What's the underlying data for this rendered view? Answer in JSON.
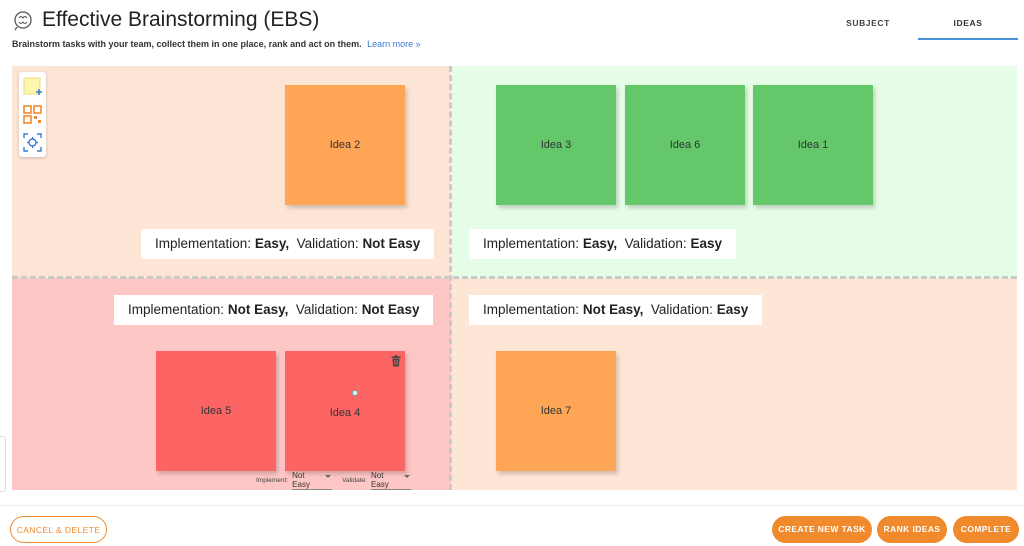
{
  "header": {
    "title": "Effective Brainstorming (EBS)",
    "subtitle": "Brainstorm tasks with your team, collect them in one place, rank and act on them.",
    "learn_more": "Learn more »",
    "logo_icon": "brain-icon"
  },
  "tabs": [
    {
      "label": "SUBJECT",
      "active": false
    },
    {
      "label": "IDEAS",
      "active": true
    }
  ],
  "quadrants": {
    "top_left": {
      "impl_label": "Implementation:",
      "impl_value": "Easy,",
      "valid_label": "Validation:",
      "valid_value": "Not Easy",
      "color": "#fde5d6"
    },
    "top_right": {
      "impl_label": "Implementation:",
      "impl_value": "Easy,",
      "valid_label": "Validation:",
      "valid_value": "Easy",
      "color": "#e5fde6"
    },
    "bottom_left": {
      "impl_label": "Implementation:",
      "impl_value": "Not Easy,",
      "valid_label": "Validation:",
      "valid_value": "Not Easy",
      "color": "#ffc6c6"
    },
    "bottom_right": {
      "impl_label": "Implementation:",
      "impl_value": "Not Easy,",
      "valid_label": "Validation:",
      "valid_value": "Easy",
      "color": "#fde6d6"
    }
  },
  "ideas": {
    "idea2": {
      "label": "Idea 2",
      "color": "#ffa556"
    },
    "idea3": {
      "label": "Idea 3",
      "color": "#64c86b"
    },
    "idea6": {
      "label": "Idea 6",
      "color": "#64c86b"
    },
    "idea1": {
      "label": "Idea 1",
      "color": "#64c86b"
    },
    "idea5": {
      "label": "Idea 5",
      "color": "#fd6464"
    },
    "idea4": {
      "label": "Idea 4",
      "color": "#fd6464"
    },
    "idea7": {
      "label": "Idea 7",
      "color": "#ffa556"
    }
  },
  "selected_idea": {
    "implement_label": "Implement:",
    "implement_value": "Not Easy",
    "validate_label": "Validate:",
    "validate_value": "Not Easy"
  },
  "toolbar": {
    "tools": [
      "sticky-note-add-icon",
      "qr-code-icon",
      "focus-target-icon"
    ]
  },
  "footer": {
    "cancel_label": "CANCEL & DELETE",
    "create_label": "CREATE NEW TASK",
    "rank_label": "RANK IDEAS",
    "complete_label": "COMPLETE"
  },
  "colors": {
    "accent": "#f08a2c",
    "tab_underline": "#4a90d9"
  }
}
